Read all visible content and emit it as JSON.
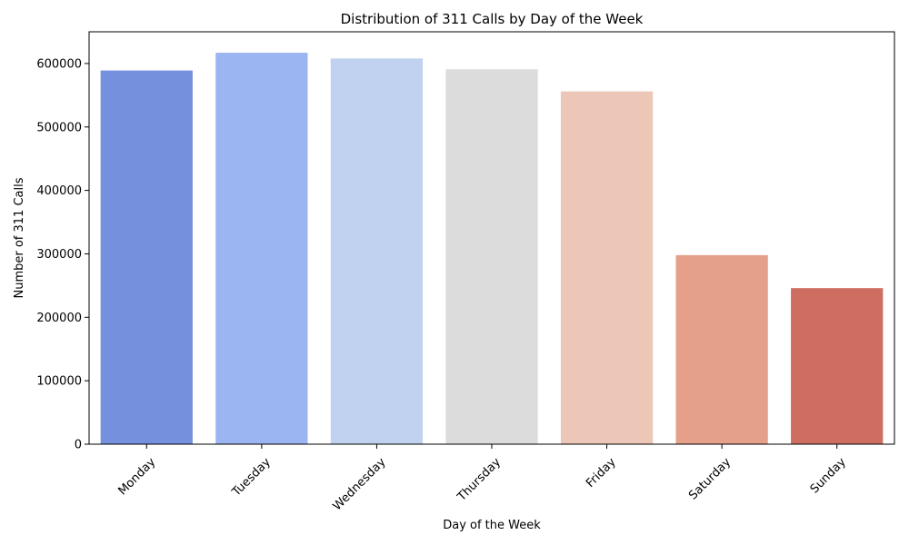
{
  "chart_data": {
    "type": "bar",
    "title": "Distribution of 311 Calls by Day of the Week",
    "xlabel": "Day of the Week",
    "ylabel": "Number of 311 Calls",
    "categories": [
      "Monday",
      "Tuesday",
      "Wednesday",
      "Thursday",
      "Friday",
      "Saturday",
      "Sunday"
    ],
    "values": [
      589000,
      617000,
      608000,
      591000,
      556000,
      298000,
      246000
    ],
    "colors": [
      "#7590dd",
      "#9bb5f2",
      "#c1d2f0",
      "#dcdcdc",
      "#ecc6b6",
      "#e5a08a",
      "#cd6e61"
    ],
    "ylim": [
      0,
      650000
    ],
    "yticks": [
      0,
      100000,
      200000,
      300000,
      400000,
      500000,
      600000
    ],
    "ytick_labels": [
      "0",
      "100000",
      "200000",
      "300000",
      "400000",
      "500000",
      "600000"
    ],
    "grid": false,
    "legend": "none",
    "xtick_rotation_deg": 45
  }
}
